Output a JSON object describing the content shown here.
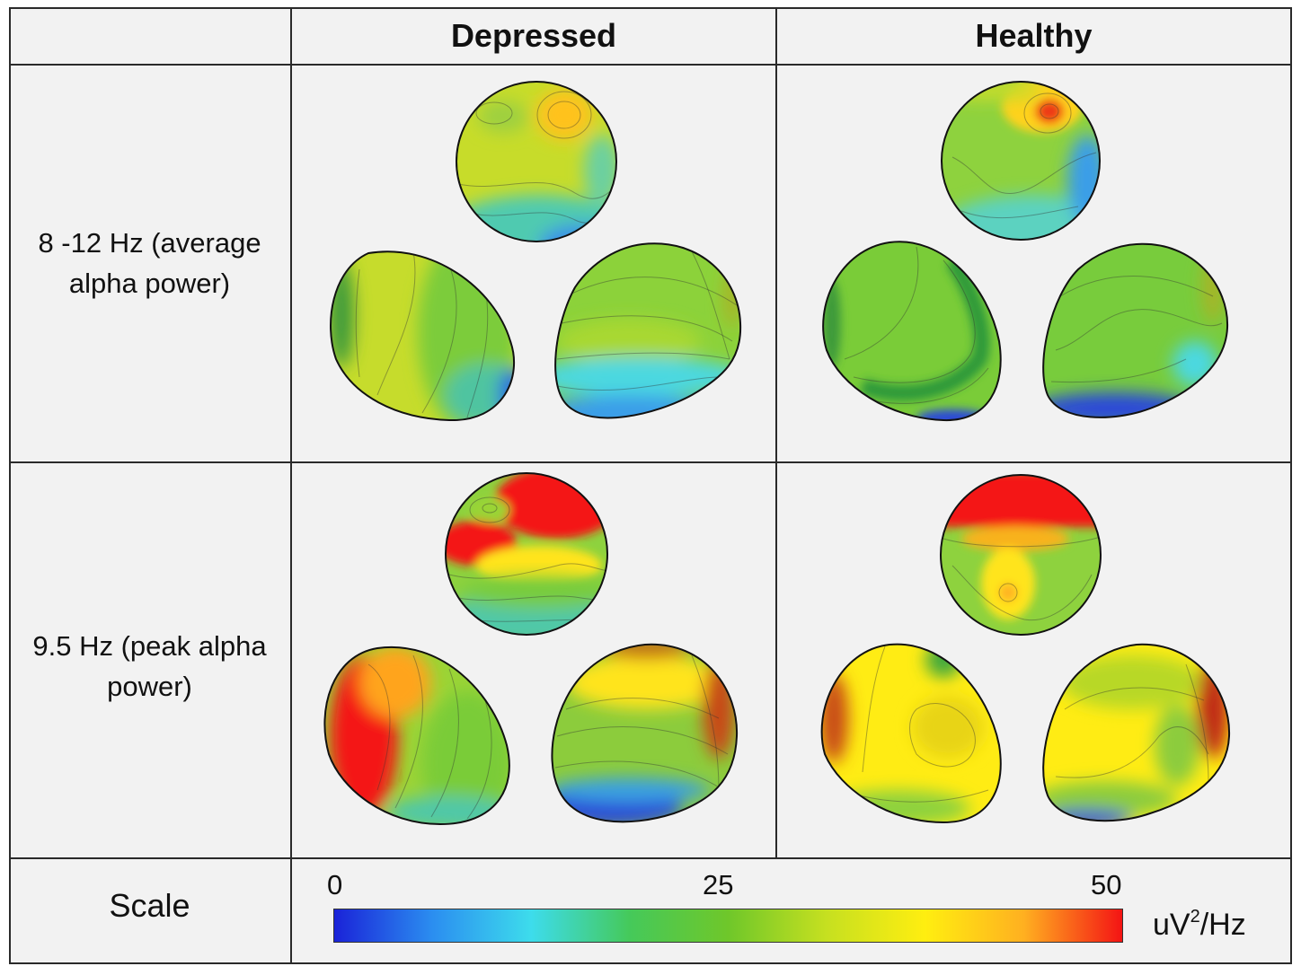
{
  "headers": {
    "blank": "",
    "depressed": "Depressed",
    "healthy": "Healthy"
  },
  "rows": [
    {
      "line1": "8 -12 Hz (average",
      "line2": "alpha power)"
    },
    {
      "line1": "9.5 Hz (peak alpha",
      "line2": "power)"
    }
  ],
  "scale": {
    "label": "Scale",
    "ticks": [
      "0",
      "25",
      "50"
    ],
    "unit_base": "uV",
    "unit_sup": "2",
    "unit_tail": "/Hz",
    "colors": [
      "#1a23d8",
      "#2b8ef0",
      "#3ddcec",
      "#45c95a",
      "#6fc72a",
      "#c6e020",
      "#ffee10",
      "#ffb020",
      "#f41414"
    ]
  },
  "maps": [
    {
      "id": "depressed-alpha-top",
      "colors": [
        "#c7dc2a",
        "#ffc21c",
        "#4fcab0",
        "#3b8fe8"
      ]
    },
    {
      "id": "depressed-alpha-left",
      "colors": [
        "#c6dc2c",
        "#7ccc3a",
        "#50c4a0",
        "#2a6ae0"
      ]
    },
    {
      "id": "depressed-alpha-right",
      "colors": [
        "#8cd23a",
        "#a8d832",
        "#4cd8e0",
        "#3a9ee8"
      ]
    },
    {
      "id": "healthy-alpha-top",
      "colors": [
        "#8ed23e",
        "#ee3a14",
        "#5cd2c0",
        "#3a9ee8"
      ]
    },
    {
      "id": "healthy-alpha-left",
      "colors": [
        "#7acc38",
        "#2f9a3a",
        "#2a48d8"
      ]
    },
    {
      "id": "healthy-alpha-right",
      "colors": [
        "#78cc3c",
        "#a8b428",
        "#4cd8e0",
        "#2a48d8"
      ]
    },
    {
      "id": "depressed-peak-top",
      "colors": [
        "#f41414",
        "#ffe41a",
        "#78cc3c",
        "#50c8a8"
      ]
    },
    {
      "id": "depressed-peak-left",
      "colors": [
        "#f41414",
        "#ffa41e",
        "#9ad436",
        "#7acc38"
      ]
    },
    {
      "id": "depressed-peak-right",
      "colors": [
        "#ffe41a",
        "#8ccc3c",
        "#c84a14",
        "#2a48d8"
      ]
    },
    {
      "id": "healthy-peak-top",
      "colors": [
        "#f41414",
        "#ffe41a",
        "#8ed23e",
        "#f8b21e"
      ]
    },
    {
      "id": "healthy-peak-left",
      "colors": [
        "#ffec14",
        "#e8d418",
        "#c84a14",
        "#40a83e"
      ]
    },
    {
      "id": "healthy-peak-right",
      "colors": [
        "#ffec14",
        "#8ccc3c",
        "#c02a14",
        "#2a48d8"
      ]
    }
  ]
}
